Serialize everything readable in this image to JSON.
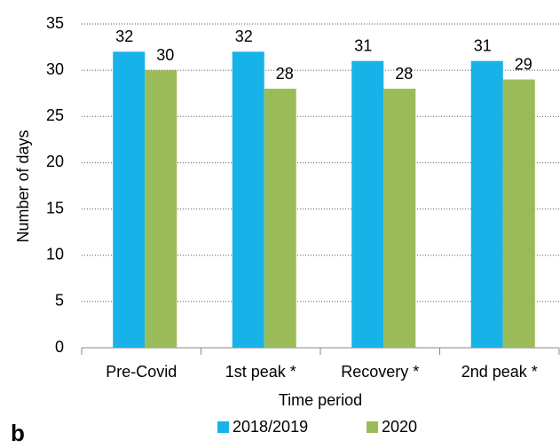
{
  "chart_data": {
    "type": "bar",
    "panel_label": "b",
    "x_label": "Time period",
    "y_label": "Number of days",
    "categories": [
      "Pre-Covid",
      "1st peak *",
      "Recovery *",
      "2nd peak *"
    ],
    "series": [
      {
        "name": "2018/2019",
        "color": "#17b3e8",
        "values": [
          32,
          32,
          31,
          31
        ]
      },
      {
        "name": "2020",
        "color": "#9bbb59",
        "values": [
          30,
          28,
          28,
          29
        ]
      }
    ],
    "ylim": [
      0,
      35
    ],
    "yticks": [
      0,
      5,
      10,
      15,
      20,
      25,
      30,
      35
    ],
    "grid": true,
    "legend": "bottom"
  }
}
